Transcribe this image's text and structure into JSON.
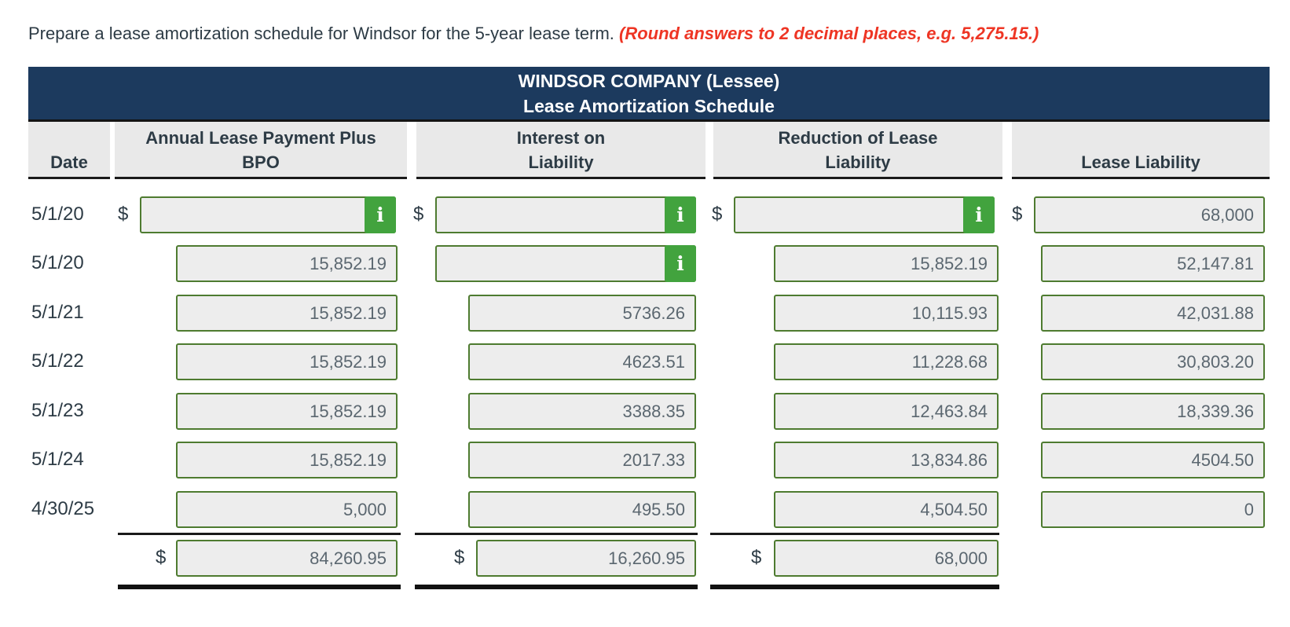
{
  "prompt": {
    "main": "Prepare a lease amortization schedule for Windsor for the 5-year lease term. ",
    "note": "(Round answers to 2 decimal places, e.g. 5,275.15.)"
  },
  "table": {
    "title_line1": "WINDSOR COMPANY (Lessee)",
    "title_line2": "Lease Amortization Schedule",
    "dollar_sign": "$",
    "info_icon": "i",
    "columns": [
      {
        "id": "date",
        "label": "Date"
      },
      {
        "id": "payment",
        "label": "Annual Lease Payment Plus\nBPO"
      },
      {
        "id": "interest",
        "label": "Interest on\nLiability"
      },
      {
        "id": "reduction",
        "label": "Reduction of Lease\nLiability"
      },
      {
        "id": "liability",
        "label": "Lease Liability"
      }
    ],
    "rows": [
      {
        "date": "5/1/20",
        "payment": {
          "value": "",
          "dollar": true,
          "info": true,
          "wide": true
        },
        "interest": {
          "value": "",
          "dollar": true,
          "info": true,
          "wide": true
        },
        "reduction": {
          "value": "",
          "dollar": true,
          "info": true,
          "wide": true
        },
        "liability": {
          "value": "68,000",
          "dollar": true,
          "wide": true
        }
      },
      {
        "date": "5/1/20",
        "payment": {
          "value": "15,852.19"
        },
        "interest": {
          "value": "",
          "info": true,
          "wide": true
        },
        "reduction": {
          "value": "15,852.19"
        },
        "liability": {
          "value": "52,147.81"
        }
      },
      {
        "date": "5/1/21",
        "payment": {
          "value": "15,852.19"
        },
        "interest": {
          "value": "5736.26"
        },
        "reduction": {
          "value": "10,115.93"
        },
        "liability": {
          "value": "42,031.88"
        }
      },
      {
        "date": "5/1/22",
        "payment": {
          "value": "15,852.19"
        },
        "interest": {
          "value": "4623.51"
        },
        "reduction": {
          "value": "11,228.68"
        },
        "liability": {
          "value": "30,803.20"
        }
      },
      {
        "date": "5/1/23",
        "payment": {
          "value": "15,852.19"
        },
        "interest": {
          "value": "3388.35"
        },
        "reduction": {
          "value": "12,463.84"
        },
        "liability": {
          "value": "18,339.36"
        }
      },
      {
        "date": "5/1/24",
        "payment": {
          "value": "15,852.19"
        },
        "interest": {
          "value": "2017.33"
        },
        "reduction": {
          "value": "13,834.86"
        },
        "liability": {
          "value": "4504.50"
        }
      },
      {
        "date": "4/30/25",
        "payment": {
          "value": "5,000"
        },
        "interest": {
          "value": "495.50"
        },
        "reduction": {
          "value": "4,504.50"
        },
        "liability": {
          "value": "0"
        }
      }
    ],
    "totals": {
      "payment": {
        "value": "84,260.95"
      },
      "interest": {
        "value": "16,260.95"
      },
      "reduction": {
        "value": "68,000"
      }
    }
  }
}
